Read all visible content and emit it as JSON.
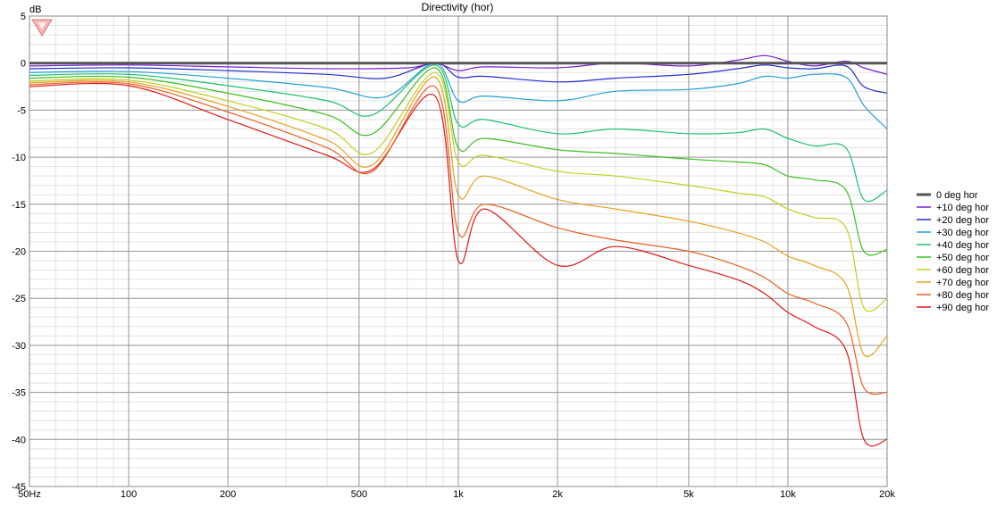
{
  "chart_data": {
    "type": "line",
    "title": "Directivity (hor)",
    "ylabel": "dB",
    "xscale": "log",
    "xlim": [
      50,
      20000
    ],
    "ylim": [
      -45,
      5
    ],
    "x_ticks": [
      {
        "value": 50,
        "label": "50Hz"
      },
      {
        "value": 100,
        "label": "100"
      },
      {
        "value": 200,
        "label": "200"
      },
      {
        "value": 500,
        "label": "500"
      },
      {
        "value": 1000,
        "label": "1k"
      },
      {
        "value": 2000,
        "label": "2k"
      },
      {
        "value": 5000,
        "label": "5k"
      },
      {
        "value": 10000,
        "label": "10k"
      },
      {
        "value": 20000,
        "label": "20k"
      }
    ],
    "y_ticks": [
      {
        "value": 5,
        "label": "5"
      },
      {
        "value": 0,
        "label": "0"
      },
      {
        "value": -5,
        "label": "-5"
      },
      {
        "value": -10,
        "label": "-10"
      },
      {
        "value": -15,
        "label": "-15"
      },
      {
        "value": -20,
        "label": "-20"
      },
      {
        "value": -25,
        "label": "-25"
      },
      {
        "value": -30,
        "label": "-30"
      },
      {
        "value": -35,
        "label": "-35"
      },
      {
        "value": -40,
        "label": "-40"
      },
      {
        "value": -45,
        "label": "-45"
      }
    ],
    "grid": true,
    "legend_position": "right",
    "series": [
      {
        "name": "0 deg hor",
        "color": "#555555",
        "x": [
          50,
          20000
        ],
        "y": [
          0,
          0
        ]
      },
      {
        "name": "+10 deg hor",
        "color": "#7b1fd0",
        "x": [
          50,
          100,
          200,
          400,
          700,
          850,
          1000,
          1200,
          2000,
          3000,
          5000,
          7000,
          8500,
          10000,
          12000,
          15000,
          17000,
          20000
        ],
        "y": [
          -0.3,
          -0.2,
          -0.4,
          -0.6,
          -0.5,
          0,
          -0.8,
          -0.4,
          -0.5,
          0,
          -0.3,
          0.3,
          0.8,
          0.2,
          -0.3,
          0.2,
          -0.5,
          -1.2
        ]
      },
      {
        "name": "+20 deg hor",
        "color": "#1f2fd0",
        "x": [
          50,
          100,
          200,
          400,
          600,
          850,
          1000,
          1200,
          2000,
          3000,
          5000,
          7000,
          8500,
          10000,
          12000,
          15000,
          17000,
          20000
        ],
        "y": [
          -0.6,
          -0.5,
          -0.8,
          -1.2,
          -1.6,
          0,
          -1.5,
          -1.4,
          -2.0,
          -1.6,
          -1.2,
          -0.6,
          -0.2,
          -0.5,
          -0.6,
          -0.3,
          -2.5,
          -3.2
        ]
      },
      {
        "name": "+30 deg hor",
        "color": "#1fa0d8",
        "x": [
          50,
          100,
          200,
          400,
          600,
          850,
          1000,
          1200,
          2000,
          3000,
          5000,
          7000,
          8500,
          10000,
          12000,
          15000,
          17000,
          20000
        ],
        "y": [
          -1.0,
          -0.9,
          -1.6,
          -2.6,
          -3.6,
          0,
          -4.0,
          -3.5,
          -4.0,
          -3.0,
          -2.8,
          -2.2,
          -1.4,
          -1.6,
          -1.2,
          -1.5,
          -4.5,
          -7.0
        ]
      },
      {
        "name": "+40 deg hor",
        "color": "#1fc070",
        "x": [
          50,
          100,
          200,
          400,
          550,
          850,
          1000,
          1200,
          2000,
          3000,
          5000,
          7000,
          8500,
          10000,
          12000,
          15000,
          17000,
          20000
        ],
        "y": [
          -1.3,
          -1.2,
          -2.4,
          -4.0,
          -5.5,
          -0.2,
          -6.5,
          -6.0,
          -7.5,
          -7.0,
          -7.5,
          -7.4,
          -7.0,
          -8.0,
          -8.8,
          -9.0,
          -14.5,
          -13.5
        ]
      },
      {
        "name": "+50 deg hor",
        "color": "#3cc020",
        "x": [
          50,
          100,
          200,
          400,
          550,
          850,
          1000,
          1200,
          2000,
          3000,
          5000,
          7000,
          8500,
          10000,
          12000,
          15000,
          17000,
          20000
        ],
        "y": [
          -1.6,
          -1.5,
          -3.2,
          -5.5,
          -7.5,
          -0.5,
          -9.0,
          -8.0,
          -9.2,
          -9.6,
          -10.2,
          -10.5,
          -10.8,
          -12.0,
          -12.4,
          -13.5,
          -20.0,
          -19.8
        ]
      },
      {
        "name": "+60 deg hor",
        "color": "#c0d020",
        "x": [
          50,
          100,
          200,
          400,
          550,
          850,
          1000,
          1200,
          2000,
          3000,
          5000,
          7000,
          8500,
          10000,
          12000,
          15000,
          17000,
          20000
        ],
        "y": [
          -1.9,
          -1.8,
          -4.0,
          -7.0,
          -9.5,
          -1.0,
          -10.5,
          -9.8,
          -11.5,
          -12.0,
          -13.0,
          -13.8,
          -14.2,
          -15.5,
          -16.4,
          -17.5,
          -26.0,
          -25.0
        ]
      },
      {
        "name": "+70 deg hor",
        "color": "#e8a020",
        "x": [
          50,
          100,
          200,
          400,
          550,
          850,
          1000,
          1200,
          2000,
          3000,
          5000,
          7000,
          8500,
          10000,
          12000,
          15000,
          17000,
          20000
        ],
        "y": [
          -2.1,
          -2.0,
          -4.6,
          -8.2,
          -10.8,
          -1.5,
          -14.0,
          -12.0,
          -14.5,
          -15.5,
          -16.8,
          -18.0,
          -19.0,
          -20.5,
          -21.5,
          -23.5,
          -31.0,
          -29.0
        ]
      },
      {
        "name": "+80 deg hor",
        "color": "#e86020",
        "x": [
          50,
          100,
          200,
          400,
          550,
          850,
          1000,
          1200,
          2000,
          3000,
          5000,
          7000,
          8500,
          10000,
          12000,
          15000,
          17000,
          20000
        ],
        "y": [
          -2.3,
          -2.2,
          -5.2,
          -9.0,
          -11.5,
          -2.5,
          -18.0,
          -15.0,
          -17.5,
          -18.8,
          -20.0,
          -21.5,
          -22.8,
          -24.5,
          -25.5,
          -27.5,
          -34.5,
          -35.0
        ]
      },
      {
        "name": "+90 deg hor",
        "color": "#e01818",
        "x": [
          50,
          100,
          200,
          400,
          550,
          850,
          1000,
          1200,
          2000,
          3000,
          5000,
          7000,
          8500,
          10000,
          12000,
          15000,
          17000,
          20000
        ],
        "y": [
          -2.5,
          -2.4,
          -6.0,
          -9.8,
          -11.3,
          -3.5,
          -21.0,
          -15.5,
          -21.5,
          -19.5,
          -21.5,
          -23.0,
          -24.5,
          -26.5,
          -28.0,
          -30.5,
          -40.0,
          -40.0
        ]
      }
    ]
  }
}
